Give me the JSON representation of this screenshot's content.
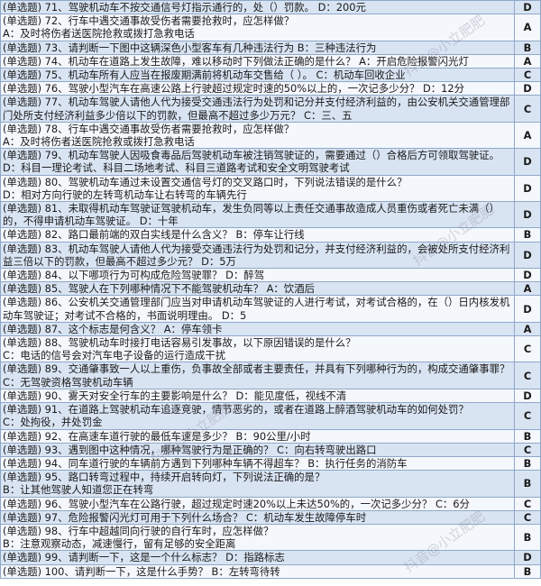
{
  "watermark": "抖音@小立肥肥",
  "table": {
    "rows": [
      {
        "question": "(单选题) 71、驾驶机动车不按交通信号灯指示通行的，处（）罚款。",
        "answer": "D：200元",
        "result": "D"
      },
      {
        "question": "(单选题) 72、行车中遇交通事故受伤者需要抢救时，应怎样做？",
        "answer": "A：及时将伤者送医院抢救或拨打急救电话",
        "result": "A"
      },
      {
        "question": "(单选题) 73、请判断一下图中这辆深色小型客车有几种违法行为",
        "answer": "B：三种违法行为",
        "result": "B"
      },
      {
        "question": "(单选题) 74、机动车在道路上发生故障，难以移动时下列做法正确的是什么？",
        "answer": "A：开启危险报警闪光灯",
        "result": "A"
      },
      {
        "question": "(单选题) 75、机动车所有人应当在报废期满前将机动车交售给（ ）。",
        "answer": "C：机动车回收企业",
        "result": "C"
      },
      {
        "question": "(单选题) 76、驾驶小型汽车在高速公路上行驶超过规定时速的50%以上的，一次记多少分？",
        "answer": "D：12分",
        "result": "D"
      },
      {
        "question": "(单选题) 77、机动车驾驶人请他人代为接受交通违法行为处罚和记分并支付经济利益的，由公安机关交通管理部门处所支付经济利益多少倍以下的罚款，但最高不超过多少万元？",
        "answer": "C：三、五",
        "result": "C"
      },
      {
        "question": "(单选题) 78、行车中遇交通事故受伤者需要抢救时，应怎样做？",
        "answer": "A：及时将伤者送医院抢救或拨打急救电话",
        "result": "A"
      },
      {
        "question": "(单选题) 79、机动车驾驶人因吸食毒品后驾驶机动车被注销驾驶证的，需要通过（）合格后方可领取驾驶证。",
        "answer": "D：科目一理论考试、科目二场地考试、科目三道路考试和安全文明驾驶考试",
        "result": "D"
      },
      {
        "question": "(单选题) 80、驾驶机动车通过未设置交通信号灯的交叉路口时，下列说法错误的是什么？",
        "answer": "D：相对方向行驶的左转弯机动车让右转弯的车辆先行",
        "result": "D"
      },
      {
        "question": "(单选题) 81、未取得机动车驾驶证驾驶机动车，发生负同等以上责任交通事故造成人员重伤或者死亡未满（）的，不得申请机动车驾驶证。",
        "answer": "D：十年",
        "result": "D"
      },
      {
        "question": "(单选题) 82、路口最前端的双白实线是什么含义？",
        "answer": "B：停车让行线",
        "result": "B"
      },
      {
        "question": "(单选题) 83、机动车驾驶人请他人代为接受交通违法行为处罚和记分，并支付经济利益的，会被处所支付经济利益三倍以下的罚款，但最高不超过多少元？",
        "answer": "D：5万",
        "result": "D"
      },
      {
        "question": "(单选题) 84、以下哪项行为可构成危险驾驶罪？",
        "answer": "D：醉驾",
        "result": "D"
      },
      {
        "question": "(单选题) 85、驾驶人在下列哪种情况下不能驾驶机动车？",
        "answer": "A：饮酒后",
        "result": "A"
      },
      {
        "question": "(单选题) 86、公安机关交通管理部门应当对申请机动车驾驶证的人进行考试，对考试合格的，在（）日内核发机动车驾驶证；对考试不合格的，书面说明理由。",
        "answer": "D：5",
        "result": "D"
      },
      {
        "question": "(单选题) 87、这个标志是何含义？",
        "answer": "A：停车领卡",
        "result": "A"
      },
      {
        "question": "(单选题) 88、驾驶机动车时接打电话容易引发事故，以下原因错误的是什么？",
        "answer": "C：电话的信号会对汽车电子设备的运行造成干扰",
        "result": "C"
      },
      {
        "question": "(单选题) 89、交通肇事致一人以上重伤，负事故全部或者主要责任，并具有下列哪种行为的，构成交通肇事罪？",
        "answer": "C：无驾驶资格驾驶机动车辆",
        "result": "C"
      },
      {
        "question": "(单选题) 90、雾天对安全行车的主要影响是什么？",
        "answer": "D：能见度低，视线不清",
        "result": "D"
      },
      {
        "question": "(单选题) 91、在道路上驾驶机动车追逐竞驶，情节恶劣的，或者在道路上醉酒驾驶机动车的如何处罚？",
        "answer": "C：处拘役，并处罚金",
        "result": "C"
      },
      {
        "question": "(单选题) 92、在高速车道行驶的最低车速是多少？",
        "answer": "B：90公里/小时",
        "result": "B"
      },
      {
        "question": "(单选题) 93、遇到图中这种情况，哪种驾驶行为是正确的？",
        "answer": "C：向右转弯驶出路口",
        "result": "C"
      },
      {
        "question": "(单选题) 94、同车道行驶的车辆前方遇到下列哪种车辆不得超车？",
        "answer": "B：执行任务的消防车",
        "result": "B"
      },
      {
        "question": "(单选题) 95、路口转弯过程中，持续开启转向灯，下列说法正确的是？",
        "answer": "B：让其他驾驶人知道您正在转弯",
        "result": "B"
      },
      {
        "question": "(单选题) 96、驾驶小型汽车在公路行驶，超过规定时速20%以上未达50%的，一次记多少分？",
        "answer": "C：6分",
        "result": "C"
      },
      {
        "question": "(单选题) 97、危险报警闪光灯可用于下列什么场合？",
        "answer": "C：机动车发生故障停车时",
        "result": "C"
      },
      {
        "question": "(单选题) 98、行车中超越同向行驶的自行车时，应怎样做？",
        "answer": "B：注意观察动态，减速慢行，留有足够的安全距离",
        "result": "B"
      },
      {
        "question": "(单选题) 99、请判断一下，这是一个什么标志？",
        "answer": "D：指路标志",
        "result": "D"
      },
      {
        "question": "(单选题) 100、请判断一下，这是什么手势？",
        "answer": "B：左转弯待转",
        "result": "B"
      }
    ]
  }
}
